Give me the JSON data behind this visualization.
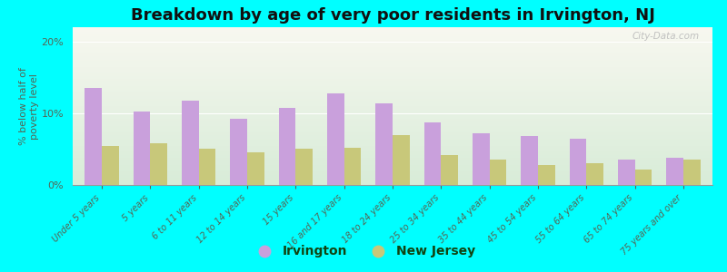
{
  "title": "Breakdown by age of very poor residents in Irvington, NJ",
  "ylabel": "% below half of\npoverty level",
  "categories": [
    "Under 5 years",
    "5 years",
    "6 to 11 years",
    "12 to 14 years",
    "15 years",
    "16 and 17 years",
    "18 to 24 years",
    "25 to 34 years",
    "35 to 44 years",
    "45 to 54 years",
    "55 to 64 years",
    "65 to 74 years",
    "75 years and over"
  ],
  "irvington": [
    13.5,
    10.2,
    11.7,
    9.2,
    10.8,
    12.8,
    11.4,
    8.7,
    7.2,
    6.8,
    6.5,
    3.5,
    3.8
  ],
  "new_jersey": [
    5.5,
    5.8,
    5.0,
    4.5,
    5.0,
    5.2,
    7.0,
    4.2,
    3.5,
    2.8,
    3.0,
    2.2,
    3.5
  ],
  "irvington_color": "#c9a0dc",
  "nj_color": "#c8c87a",
  "background_color": "#00ffff",
  "ylim": [
    0,
    22
  ],
  "yticks": [
    0,
    10,
    20
  ],
  "ytick_labels": [
    "0%",
    "10%",
    "20%"
  ],
  "bar_width": 0.35,
  "title_fontsize": 13,
  "watermark": "City-Data.com"
}
